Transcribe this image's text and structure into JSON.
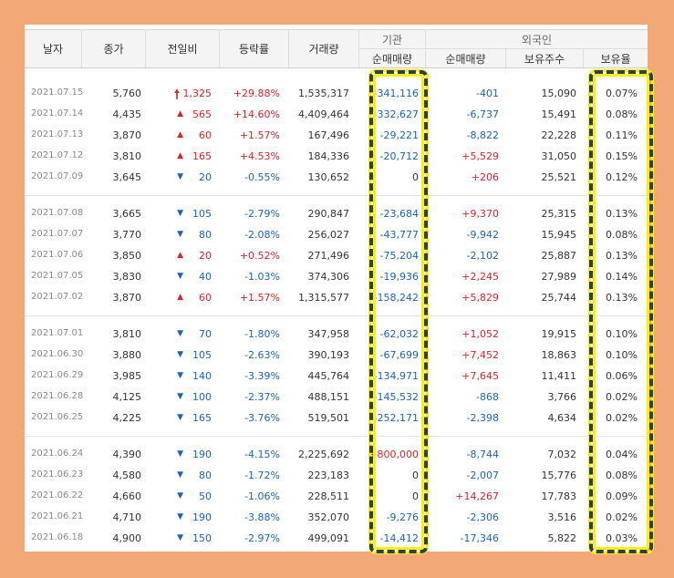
{
  "headers": {
    "date": "날자",
    "close": "종가",
    "change": "전일비",
    "rate": "등락률",
    "volume": "거래량",
    "institution": "기관",
    "inst_net": "순매매량",
    "foreign": "외국인",
    "foreign_net": "순매매량",
    "foreign_shares": "보유주수",
    "foreign_ratio": "보유율"
  },
  "groups": [
    [
      {
        "date": "2021.07.15",
        "close": "5,760",
        "dir": "upper-limit",
        "change": "1,325",
        "rate": "+29.88%",
        "volume": "1,535,317",
        "inst": "-341,116",
        "fnet": "-401",
        "fshares": "15,090",
        "fratio": "0.07%"
      },
      {
        "date": "2021.07.14",
        "close": "4,435",
        "dir": "up",
        "change": "565",
        "rate": "+14.60%",
        "volume": "4,409,464",
        "inst": "-332,627",
        "fnet": "-6,737",
        "fshares": "15,491",
        "fratio": "0.08%"
      },
      {
        "date": "2021.07.13",
        "close": "3,870",
        "dir": "up",
        "change": "60",
        "rate": "+1.57%",
        "volume": "167,496",
        "inst": "-29,221",
        "fnet": "-8,822",
        "fshares": "22,228",
        "fratio": "0.11%"
      },
      {
        "date": "2021.07.12",
        "close": "3,810",
        "dir": "up",
        "change": "165",
        "rate": "+4.53%",
        "volume": "184,336",
        "inst": "-20,712",
        "fnet": "+5,529",
        "fshares": "31,050",
        "fratio": "0.15%"
      },
      {
        "date": "2021.07.09",
        "close": "3,645",
        "dir": "down",
        "change": "20",
        "rate": "-0.55%",
        "volume": "130,652",
        "inst": "0",
        "fnet": "+206",
        "fshares": "25,521",
        "fratio": "0.12%"
      }
    ],
    [
      {
        "date": "2021.07.08",
        "close": "3,665",
        "dir": "down",
        "change": "105",
        "rate": "-2.79%",
        "volume": "290,847",
        "inst": "-23,684",
        "fnet": "+9,370",
        "fshares": "25,315",
        "fratio": "0.13%"
      },
      {
        "date": "2021.07.07",
        "close": "3,770",
        "dir": "down",
        "change": "80",
        "rate": "-2.08%",
        "volume": "256,027",
        "inst": "-43,777",
        "fnet": "-9,942",
        "fshares": "15,945",
        "fratio": "0.08%"
      },
      {
        "date": "2021.07.06",
        "close": "3,850",
        "dir": "up",
        "change": "20",
        "rate": "+0.52%",
        "volume": "271,496",
        "inst": "-75,204",
        "fnet": "-2,102",
        "fshares": "25,887",
        "fratio": "0.13%"
      },
      {
        "date": "2021.07.05",
        "close": "3,830",
        "dir": "down",
        "change": "40",
        "rate": "-1.03%",
        "volume": "374,306",
        "inst": "-19,936",
        "fnet": "+2,245",
        "fshares": "27,989",
        "fratio": "0.14%"
      },
      {
        "date": "2021.07.02",
        "close": "3,870",
        "dir": "up",
        "change": "60",
        "rate": "+1.57%",
        "volume": "1,315,577",
        "inst": "-158,242",
        "fnet": "+5,829",
        "fshares": "25,744",
        "fratio": "0.13%"
      }
    ],
    [
      {
        "date": "2021.07.01",
        "close": "3,810",
        "dir": "down",
        "change": "70",
        "rate": "-1.80%",
        "volume": "347,958",
        "inst": "-62,032",
        "fnet": "+1,052",
        "fshares": "19,915",
        "fratio": "0.10%"
      },
      {
        "date": "2021.06.30",
        "close": "3,880",
        "dir": "down",
        "change": "105",
        "rate": "-2.63%",
        "volume": "390,193",
        "inst": "-67,699",
        "fnet": "+7,452",
        "fshares": "18,863",
        "fratio": "0.10%"
      },
      {
        "date": "2021.06.29",
        "close": "3,985",
        "dir": "down",
        "change": "140",
        "rate": "-3.39%",
        "volume": "445,764",
        "inst": "-134,971",
        "fnet": "+7,645",
        "fshares": "11,411",
        "fratio": "0.06%"
      },
      {
        "date": "2021.06.28",
        "close": "4,125",
        "dir": "down",
        "change": "100",
        "rate": "-2.37%",
        "volume": "488,151",
        "inst": "-145,532",
        "fnet": "-868",
        "fshares": "3,766",
        "fratio": "0.02%"
      },
      {
        "date": "2021.06.25",
        "close": "4,225",
        "dir": "down",
        "change": "165",
        "rate": "-3.76%",
        "volume": "519,501",
        "inst": "-252,171",
        "fnet": "-2,398",
        "fshares": "4,634",
        "fratio": "0.02%"
      }
    ],
    [
      {
        "date": "2021.06.24",
        "close": "4,390",
        "dir": "down",
        "change": "190",
        "rate": "-4.15%",
        "volume": "2,225,692",
        "inst": "+800,000",
        "fnet": "-8,744",
        "fshares": "7,032",
        "fratio": "0.04%"
      },
      {
        "date": "2021.06.23",
        "close": "4,580",
        "dir": "down",
        "change": "80",
        "rate": "-1.72%",
        "volume": "223,183",
        "inst": "0",
        "fnet": "-2,007",
        "fshares": "15,776",
        "fratio": "0.08%"
      },
      {
        "date": "2021.06.22",
        "close": "4,660",
        "dir": "down",
        "change": "50",
        "rate": "-1.06%",
        "volume": "228,511",
        "inst": "0",
        "fnet": "+14,267",
        "fshares": "17,783",
        "fratio": "0.09%"
      },
      {
        "date": "2021.06.21",
        "close": "4,710",
        "dir": "down",
        "change": "190",
        "rate": "-3.88%",
        "volume": "352,070",
        "inst": "-9,276",
        "fnet": "-2,306",
        "fshares": "3,516",
        "fratio": "0.02%"
      },
      {
        "date": "2021.06.18",
        "close": "4,900",
        "dir": "down",
        "change": "150",
        "rate": "-2.97%",
        "volume": "499,091",
        "inst": "-14,412",
        "fnet": "-17,346",
        "fshares": "5,822",
        "fratio": "0.03%"
      }
    ]
  ],
  "colors": {
    "up": "#d6242c",
    "down": "#1c63b7",
    "background": "#f3a878",
    "highlight": "#fff200"
  }
}
